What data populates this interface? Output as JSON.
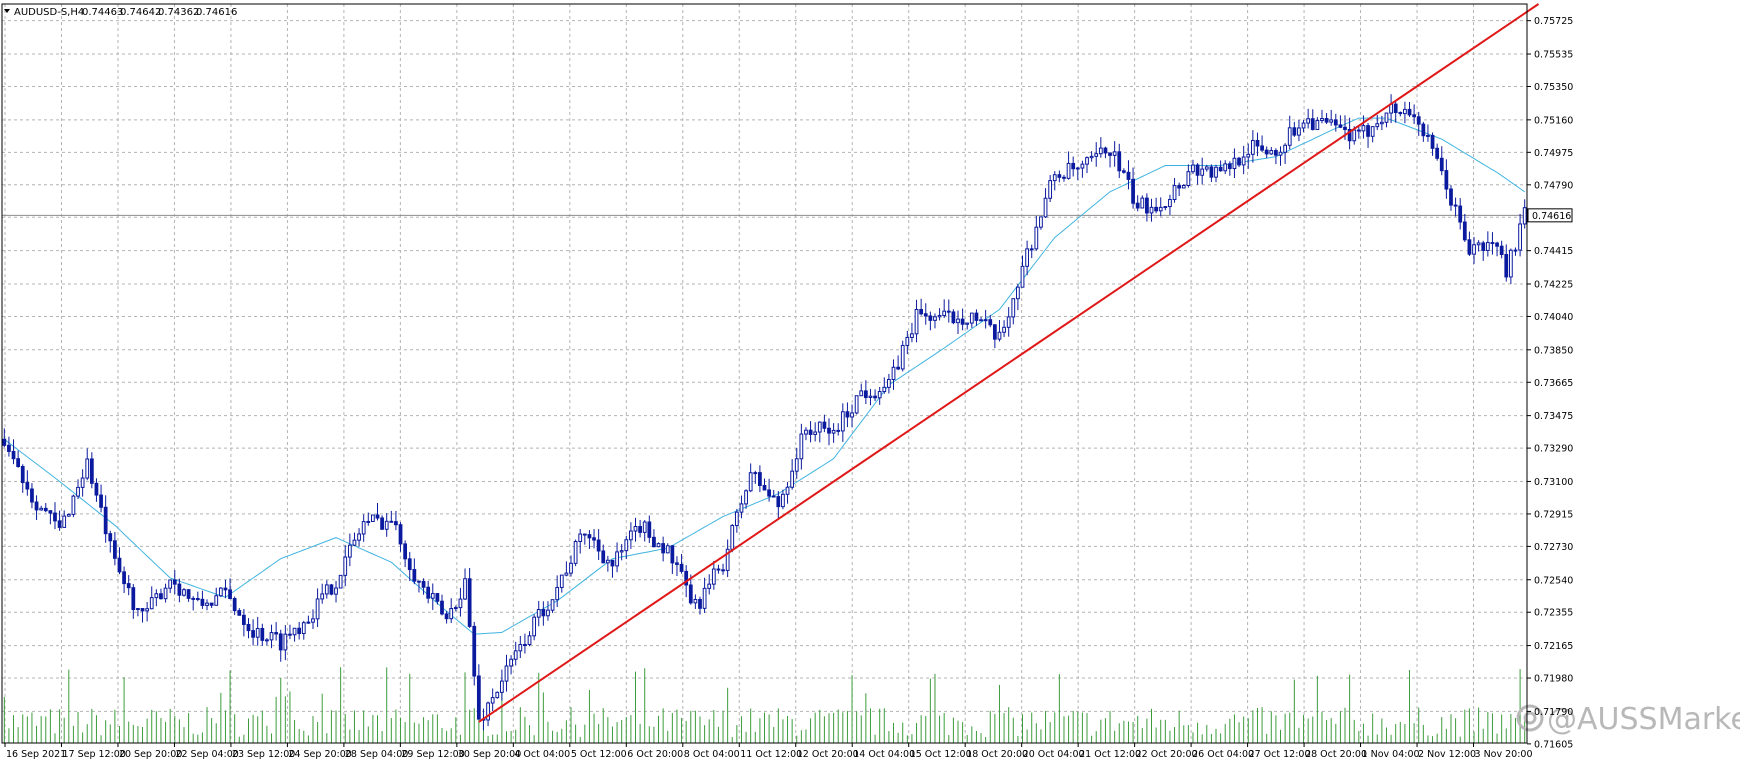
{
  "header": {
    "symbol": "AUDUSD-S,H4",
    "open": "0.74463",
    "high": "0.74642",
    "low": "0.74362",
    "close": "0.74616"
  },
  "watermark": "@AUSSMarkets",
  "colors": {
    "background": "#ffffff",
    "grid": "#b4b4b4",
    "candle": "#0b1a9e",
    "ma": "#40b4e0",
    "trendline": "#e01818",
    "volume": "#3c9c3c",
    "price_line": "#8c8c8c"
  },
  "chart_data": {
    "type": "candlestick",
    "timeframe": "H4",
    "grid": true,
    "ylim": [
      0.7161,
      0.7582
    ],
    "y_ticks": [
      "0.75725",
      "0.75535",
      "0.75350",
      "0.75160",
      "0.74975",
      "0.74790",
      "0.74605",
      "0.74415",
      "0.74225",
      "0.74040",
      "0.73850",
      "0.73665",
      "0.73475",
      "0.73290",
      "0.73100",
      "0.72915",
      "0.72730",
      "0.72540",
      "0.72355",
      "0.72165",
      "0.71980",
      "0.71790",
      "0.71605"
    ],
    "current_price": "0.74616",
    "x_ticks": [
      "16 Sep 2021",
      "17 Sep 12:00",
      "20 Sep 20:00",
      "22 Sep 04:00",
      "23 Sep 12:00",
      "24 Sep 20:00",
      "28 Sep 04:00",
      "29 Sep 12:00",
      "30 Sep 20:00",
      "4 Oct 04:00",
      "5 Oct 12:00",
      "6 Oct 20:00",
      "8 Oct 04:00",
      "11 Oct 12:00",
      "12 Oct 20:00",
      "14 Oct 04:00",
      "15 Oct 12:00",
      "18 Oct 20:00",
      "20 Oct 04:00",
      "21 Oct 12:00",
      "22 Oct 20:00",
      "26 Oct 04:00",
      "27 Oct 12:00",
      "28 Oct 20:00",
      "1 Nov 04:00",
      "2 Nov 12:00",
      "3 Nov 20:00"
    ],
    "close_path": [
      [
        0,
        0.7334
      ],
      [
        6,
        0.7302
      ],
      [
        12,
        0.7282
      ],
      [
        18,
        0.7321
      ],
      [
        24,
        0.7262
      ],
      [
        30,
        0.7232
      ],
      [
        36,
        0.7255
      ],
      [
        42,
        0.7239
      ],
      [
        48,
        0.7246
      ],
      [
        54,
        0.7225
      ],
      [
        60,
        0.7219
      ],
      [
        66,
        0.7233
      ],
      [
        72,
        0.7254
      ],
      [
        78,
        0.7287
      ],
      [
        84,
        0.7288
      ],
      [
        90,
        0.7252
      ],
      [
        96,
        0.7231
      ],
      [
        100,
        0.7253
      ],
      [
        103,
        0.7173
      ],
      [
        108,
        0.7197
      ],
      [
        114,
        0.7225
      ],
      [
        120,
        0.725
      ],
      [
        126,
        0.7282
      ],
      [
        132,
        0.7262
      ],
      [
        138,
        0.7285
      ],
      [
        144,
        0.727
      ],
      [
        150,
        0.7238
      ],
      [
        156,
        0.7264
      ],
      [
        162,
        0.7315
      ],
      [
        168,
        0.7296
      ],
      [
        174,
        0.734
      ],
      [
        180,
        0.7338
      ],
      [
        186,
        0.7361
      ],
      [
        192,
        0.7364
      ],
      [
        198,
        0.7405
      ],
      [
        204,
        0.7403
      ],
      [
        210,
        0.7405
      ],
      [
        216,
        0.739
      ],
      [
        222,
        0.744
      ],
      [
        228,
        0.7485
      ],
      [
        234,
        0.7488
      ],
      [
        240,
        0.75
      ],
      [
        246,
        0.7466
      ],
      [
        252,
        0.747
      ],
      [
        258,
        0.7489
      ],
      [
        264,
        0.7485
      ],
      [
        270,
        0.75
      ],
      [
        276,
        0.7498
      ],
      [
        282,
        0.7517
      ],
      [
        288,
        0.7512
      ],
      [
        294,
        0.7505
      ],
      [
        300,
        0.7522
      ],
      [
        306,
        0.752
      ],
      [
        312,
        0.7485
      ],
      [
        318,
        0.7442
      ],
      [
        324,
        0.7445
      ],
      [
        326,
        0.743
      ],
      [
        330,
        0.7462
      ]
    ],
    "ma_path": [
      [
        0,
        0.7334
      ],
      [
        12,
        0.731
      ],
      [
        24,
        0.7285
      ],
      [
        36,
        0.7255
      ],
      [
        48,
        0.7244
      ],
      [
        60,
        0.7266
      ],
      [
        72,
        0.7278
      ],
      [
        84,
        0.7264
      ],
      [
        96,
        0.7236
      ],
      [
        102,
        0.7223
      ],
      [
        108,
        0.7224
      ],
      [
        120,
        0.7242
      ],
      [
        132,
        0.7266
      ],
      [
        144,
        0.7272
      ],
      [
        156,
        0.729
      ],
      [
        168,
        0.7303
      ],
      [
        180,
        0.7323
      ],
      [
        192,
        0.7365
      ],
      [
        204,
        0.7386
      ],
      [
        216,
        0.7408
      ],
      [
        228,
        0.7449
      ],
      [
        240,
        0.7475
      ],
      [
        252,
        0.749
      ],
      [
        264,
        0.749
      ],
      [
        276,
        0.7495
      ],
      [
        288,
        0.751
      ],
      [
        294,
        0.7517
      ],
      [
        300,
        0.7517
      ],
      [
        312,
        0.7505
      ],
      [
        324,
        0.7486
      ],
      [
        330,
        0.7475
      ]
    ],
    "candle_count": 331,
    "trendline": [
      [
        0.7173,
        103
      ],
      [
        0.7582,
        333
      ]
    ],
    "moving_average": true,
    "volume": true
  }
}
